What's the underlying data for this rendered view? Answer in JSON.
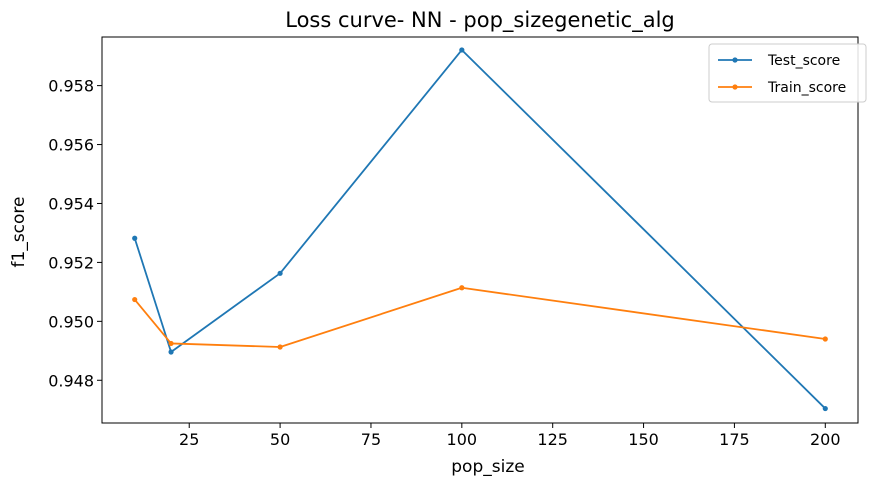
{
  "chart_data": {
    "type": "line",
    "title": "Loss curve- NN - pop_sizegenetic_alg",
    "xlabel": "pop_size",
    "ylabel": "f1_score",
    "x": [
      10,
      20,
      50,
      100,
      200
    ],
    "xlim": [
      1,
      209
    ],
    "ylim": [
      0.94655,
      0.95965
    ],
    "xticks": [
      25,
      50,
      75,
      100,
      125,
      150,
      175,
      200
    ],
    "yticks": [
      0.948,
      0.95,
      0.952,
      0.954,
      0.956,
      0.958
    ],
    "ytick_labels": [
      "0.948",
      "0.950",
      "0.952",
      "0.954",
      "0.956",
      "0.958"
    ],
    "grid": false,
    "legend_position": "top-right",
    "series": [
      {
        "name": "Test_score",
        "color": "#1f77b4",
        "values": [
          0.95282,
          0.94896,
          0.95163,
          0.95921,
          0.94704
        ]
      },
      {
        "name": "Train_score",
        "color": "#ff7f0e",
        "values": [
          0.95074,
          0.94925,
          0.94913,
          0.95114,
          0.9494
        ]
      }
    ]
  }
}
